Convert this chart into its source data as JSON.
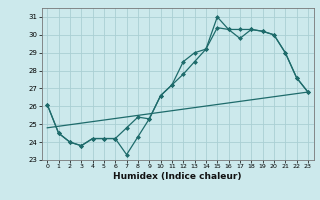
{
  "xlabel": "Humidex (Indice chaleur)",
  "xlim": [
    -0.5,
    23.5
  ],
  "ylim": [
    23,
    31.5
  ],
  "yticks": [
    23,
    24,
    25,
    26,
    27,
    28,
    29,
    30,
    31
  ],
  "xticks": [
    0,
    1,
    2,
    3,
    4,
    5,
    6,
    7,
    8,
    9,
    10,
    11,
    12,
    13,
    14,
    15,
    16,
    17,
    18,
    19,
    20,
    21,
    22,
    23
  ],
  "bg_color": "#cce9ec",
  "grid_color": "#aacfd4",
  "line_color": "#1e6b6b",
  "line1_x": [
    0,
    1,
    2,
    3,
    4,
    5,
    6,
    7,
    8,
    9,
    10,
    11,
    12,
    13,
    14,
    15,
    16,
    17,
    18,
    19,
    20,
    21,
    22,
    23
  ],
  "line1_y": [
    26.1,
    24.5,
    24.0,
    23.8,
    24.2,
    24.2,
    24.2,
    23.3,
    24.3,
    25.3,
    26.6,
    27.2,
    28.5,
    29.0,
    29.2,
    31.0,
    30.3,
    29.8,
    30.3,
    30.2,
    30.0,
    29.0,
    27.6,
    26.8
  ],
  "line2_x": [
    0,
    1,
    2,
    3,
    4,
    5,
    6,
    7,
    8,
    9,
    10,
    11,
    12,
    13,
    14,
    15,
    16,
    17,
    18,
    19,
    20,
    21,
    22,
    23
  ],
  "line2_y": [
    26.1,
    24.5,
    24.0,
    23.8,
    24.2,
    24.2,
    24.2,
    24.8,
    25.4,
    25.3,
    26.6,
    27.2,
    27.8,
    28.5,
    29.2,
    30.4,
    30.3,
    30.3,
    30.3,
    30.2,
    30.0,
    29.0,
    27.6,
    26.8
  ],
  "line3_x": [
    0,
    23
  ],
  "line3_y": [
    24.8,
    26.8
  ]
}
